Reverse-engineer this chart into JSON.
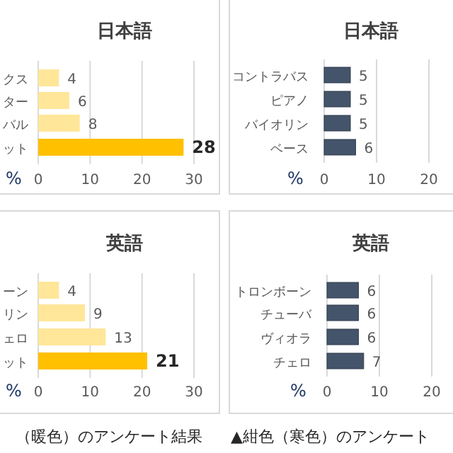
{
  "chart_data": [
    {
      "type": "bar",
      "orientation": "horizontal",
      "title": "日本語",
      "xlabel": "%",
      "categories": [
        "クス",
        "ター",
        "バル",
        "ット"
      ],
      "values": [
        4,
        6,
        8,
        28
      ],
      "colors": [
        "#ffe699",
        "#ffe699",
        "#ffe699",
        "#ffc000"
      ],
      "xlim": [
        0,
        30
      ],
      "xticks": [
        0,
        10,
        20,
        30
      ],
      "grid": "x",
      "data_labels": true
    },
    {
      "type": "bar",
      "orientation": "horizontal",
      "title": "日本語",
      "xlabel": "%",
      "categories": [
        "コントラバス",
        "ピアノ",
        "バイオリン",
        "ベース"
      ],
      "values": [
        5,
        5,
        5,
        6
      ],
      "colors": [
        "#44546a",
        "#44546a",
        "#44546a",
        "#44546a"
      ],
      "xlim": [
        0,
        20
      ],
      "xticks": [
        0,
        10,
        20
      ],
      "grid": "x",
      "data_labels": true
    },
    {
      "type": "bar",
      "orientation": "horizontal",
      "title": "英語",
      "xlabel": "%",
      "categories": [
        "ーン",
        "リン",
        "ェロ",
        "ット"
      ],
      "values": [
        4,
        9,
        13,
        21
      ],
      "colors": [
        "#ffe699",
        "#ffe699",
        "#ffe699",
        "#ffc000"
      ],
      "xlim": [
        0,
        30
      ],
      "xticks": [
        0,
        10,
        20,
        30
      ],
      "grid": "x",
      "data_labels": true,
      "annotations": [
        "（暖色）のアンケート結果"
      ]
    },
    {
      "type": "bar",
      "orientation": "horizontal",
      "title": "英語",
      "xlabel": "%",
      "categories": [
        "トロンボーン",
        "チューバ",
        "ヴィオラ",
        "チェロ"
      ],
      "values": [
        6,
        6,
        6,
        7
      ],
      "colors": [
        "#44546a",
        "#44546a",
        "#44546a",
        "#44546a"
      ],
      "xlim": [
        0,
        20
      ],
      "xticks": [
        0,
        10,
        20
      ],
      "grid": "x",
      "data_labels": true,
      "annotations": [
        "▲紺色（寒色）のアンケート"
      ]
    }
  ]
}
